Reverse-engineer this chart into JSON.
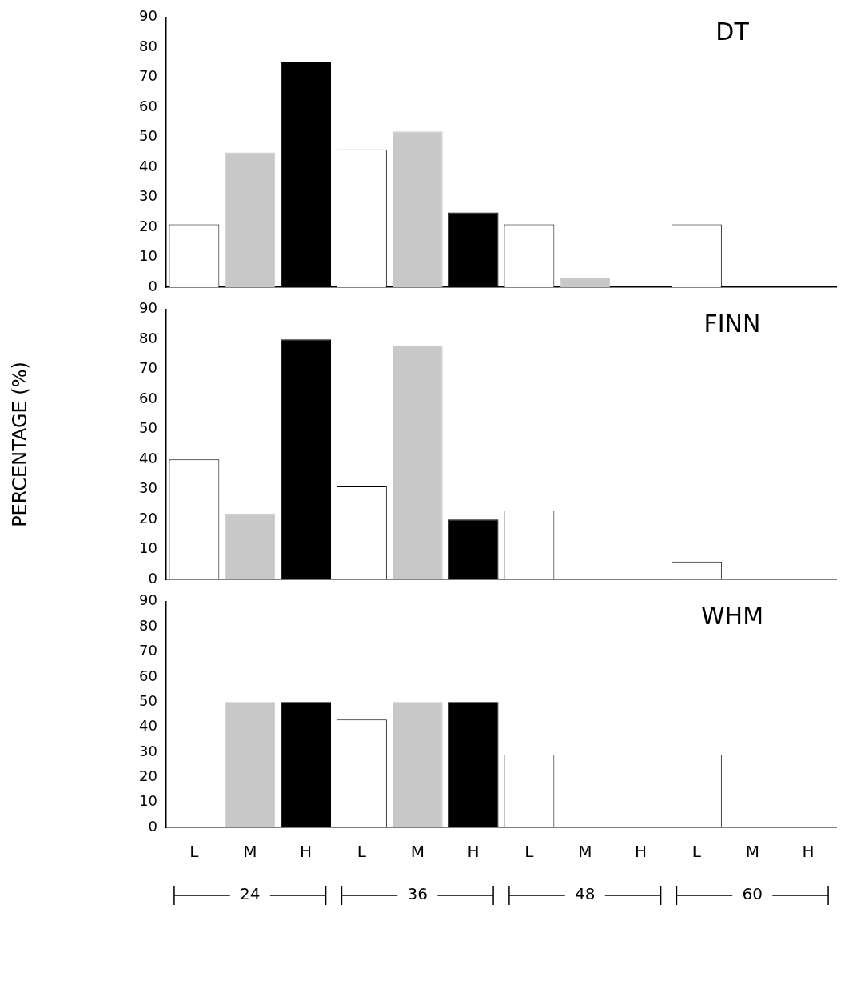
{
  "chart_data": [
    {
      "type": "bar",
      "title": "DT",
      "categories": [
        null,
        null,
        null,
        null,
        null,
        null,
        null,
        null,
        null,
        null,
        null,
        null
      ],
      "values": [
        21,
        45,
        75,
        46,
        52,
        25,
        21,
        3,
        0,
        21,
        0,
        0
      ],
      "colors": [
        "#ffffff",
        "#c8c8c8",
        "#000000",
        "#ffffff",
        "#c8c8c8",
        "#000000",
        "#ffffff",
        "#c8c8c8",
        "#000000",
        "#ffffff",
        "#c8c8c8",
        "#000000"
      ],
      "ylim": [
        0,
        90
      ],
      "yticks": [
        0,
        10,
        20,
        30,
        40,
        50,
        60,
        70,
        80,
        90
      ],
      "grid": false,
      "tick_labels": "y"
    },
    {
      "type": "bar",
      "title": "FINN",
      "ylabel": "PERCENTAGE (%)",
      "categories": [
        null,
        null,
        null,
        null,
        null,
        null,
        null,
        null,
        null,
        null,
        null,
        null
      ],
      "values": [
        40,
        22,
        80,
        31,
        78,
        20,
        23,
        0,
        0,
        6,
        0,
        0
      ],
      "colors": [
        "#ffffff",
        "#c8c8c8",
        "#000000",
        "#ffffff",
        "#c8c8c8",
        "#000000",
        "#ffffff",
        "#c8c8c8",
        "#000000",
        "#ffffff",
        "#c8c8c8",
        "#000000"
      ],
      "ylim": [
        0,
        90
      ],
      "yticks": [
        0,
        10,
        20,
        30,
        40,
        50,
        60,
        70,
        80,
        90
      ],
      "grid": false,
      "tick_labels": "y"
    },
    {
      "type": "bar",
      "title": "WHM",
      "categories": [
        "L",
        "M",
        "H",
        "L",
        "M",
        "H",
        "L",
        "M",
        "H",
        "L",
        "M",
        "H"
      ],
      "values": [
        0,
        50,
        50,
        43,
        50,
        50,
        29,
        0,
        0,
        29,
        0,
        0
      ],
      "colors": [
        "#ffffff",
        "#c8c8c8",
        "#000000",
        "#ffffff",
        "#c8c8c8",
        "#000000",
        "#ffffff",
        "#c8c8c8",
        "#000000",
        "#ffffff",
        "#c8c8c8",
        "#000000"
      ],
      "ylim": [
        0,
        90
      ],
      "yticks": [
        0,
        10,
        20,
        30,
        40,
        50,
        60,
        70,
        80,
        90
      ],
      "grid": false,
      "annotations": [
        "24",
        "36",
        "48",
        "60"
      ]
    }
  ]
}
